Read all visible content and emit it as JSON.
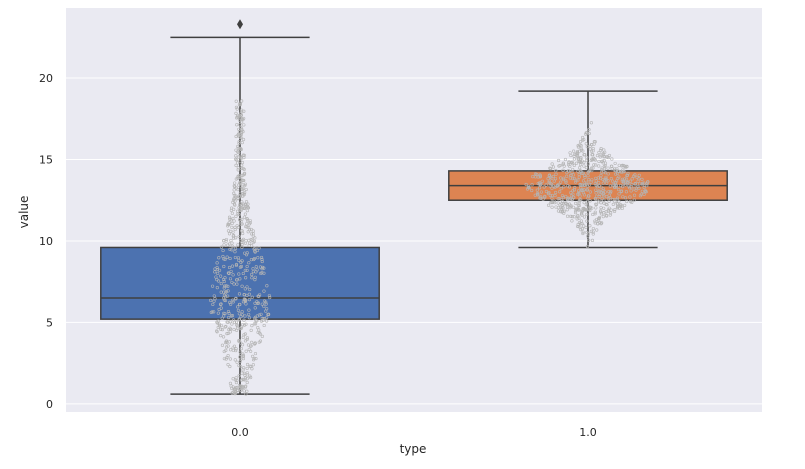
{
  "chart_data": {
    "type": "box",
    "title": "",
    "xlabel": "type",
    "ylabel": "value",
    "categories": [
      "0.0",
      "1.0"
    ],
    "ylim": [
      -0.5,
      24.3
    ],
    "yticks": [
      0,
      5,
      10,
      15,
      20
    ],
    "grid": true,
    "legend": "none",
    "boxes": [
      {
        "category": "0.0",
        "whisker_low": 0.6,
        "q1": 5.2,
        "median": 6.5,
        "q3": 9.6,
        "whisker_high": 22.5,
        "outliers": [
          23.3
        ],
        "color": "#4c72b0"
      },
      {
        "category": "1.0",
        "whisker_low": 9.6,
        "q1": 12.5,
        "median": 13.4,
        "q3": 14.3,
        "whisker_high": 19.2,
        "outliers": [],
        "color": "#dd8452"
      }
    ],
    "swarm_color": "#b4b4b4"
  }
}
